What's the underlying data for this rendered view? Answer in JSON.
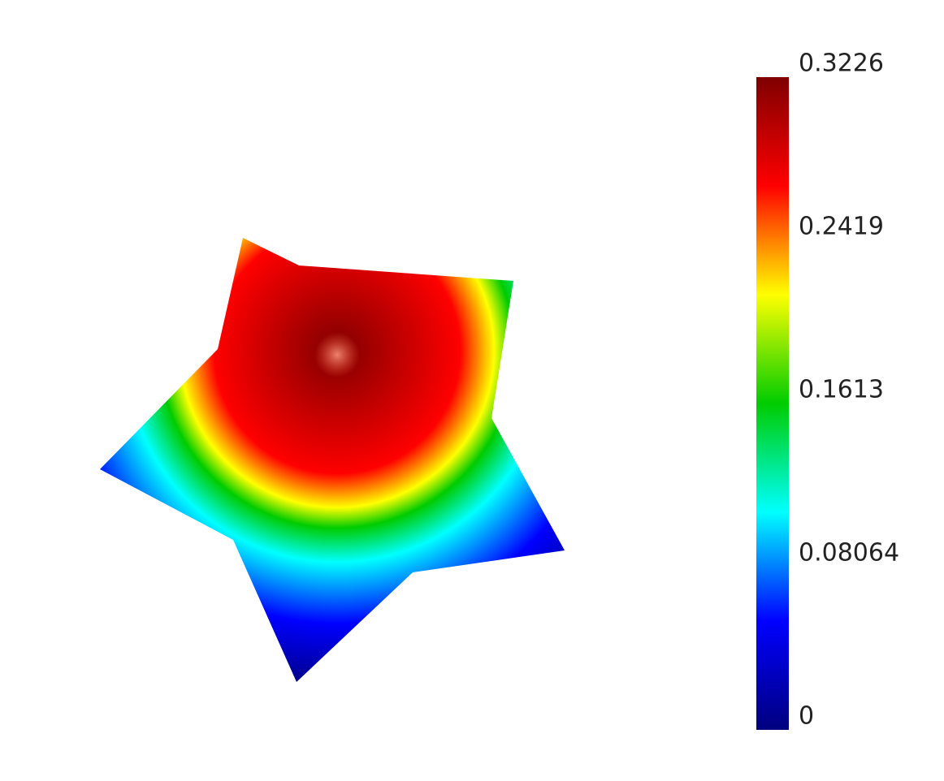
{
  "chart_data": {
    "type": "surface",
    "clim": [
      0,
      0.3226
    ],
    "cticks": [
      0,
      0.08064,
      0.1613,
      0.2419,
      0.3226
    ],
    "colormap": [
      "#00007f",
      "#0000ff",
      "#00ffff",
      "#00cc00",
      "#ffff00",
      "#ff0000",
      "#7f0000"
    ]
  }
}
